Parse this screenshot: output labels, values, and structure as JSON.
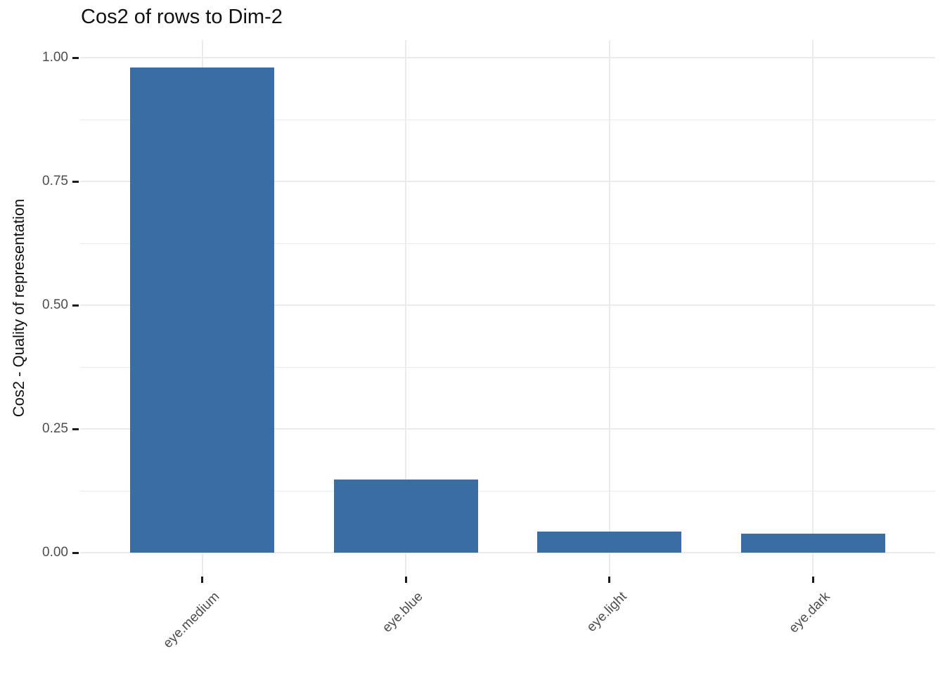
{
  "chart_data": {
    "type": "bar",
    "title": "Cos2 of rows to Dim-2",
    "xlabel": "",
    "ylabel": "Cos2 - Quality of representation",
    "categories": [
      "eye.medium",
      "eye.blue",
      "eye.light",
      "eye.dark"
    ],
    "values": [
      0.98,
      0.148,
      0.042,
      0.038
    ],
    "ylim": [
      0,
      1.0
    ],
    "y_major_ticks": [
      0,
      0.25,
      0.5,
      0.75,
      1.0
    ],
    "y_tick_labels": [
      "0.00",
      "0.25",
      "0.50",
      "0.75",
      "1.00"
    ],
    "y_minor_ticks": [
      0.125,
      0.375,
      0.625,
      0.875
    ],
    "grid": true,
    "legend_position": "none",
    "bar_color": "#3B6DA5",
    "grid_color": "#EBEBEB",
    "tick_label_color": "#4D4D4D",
    "axis_tick_color": "#1A1A1A",
    "background_color": "#FFFFFF",
    "x_label_rotation_deg": 45
  }
}
